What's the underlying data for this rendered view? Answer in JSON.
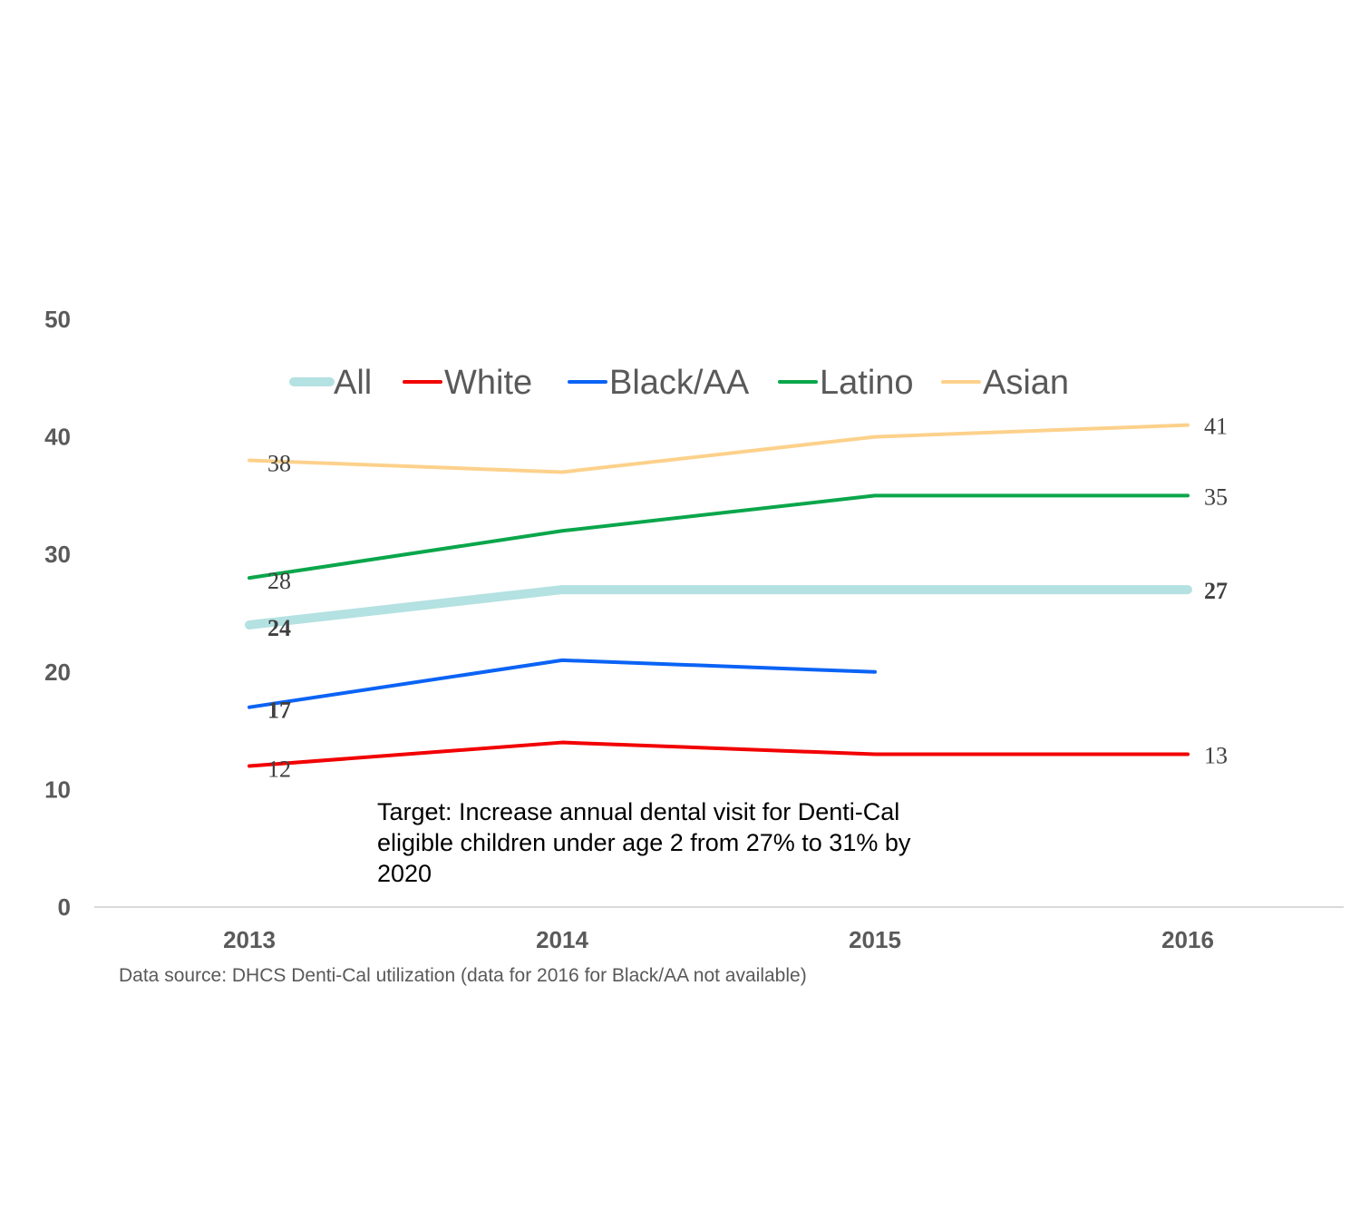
{
  "chart_data": {
    "type": "line",
    "x": [
      "2013",
      "2014",
      "2015",
      "2016"
    ],
    "ylim": [
      0,
      50
    ],
    "yticks": [
      0,
      10,
      20,
      30,
      40,
      50
    ],
    "grid": false,
    "legend_position": "top",
    "series": [
      {
        "name": "All",
        "color": "#b4e1e1",
        "values": [
          24,
          27,
          27,
          27
        ],
        "labels": {
          "0": "24",
          "3": "27"
        },
        "label_bold": true,
        "thick": true
      },
      {
        "name": "White",
        "color": "#f20000",
        "values": [
          12,
          14,
          13,
          13
        ],
        "labels": {
          "0": "12",
          "3": "13"
        },
        "label_bold": false,
        "thick": false
      },
      {
        "name": "Black/AA",
        "color": "#0b63f5",
        "values": [
          17,
          21,
          20,
          null
        ],
        "labels": {
          "0": "17"
        },
        "label_bold": true,
        "thick": false
      },
      {
        "name": "Latino",
        "color": "#0aa64b",
        "values": [
          28,
          32,
          35,
          35
        ],
        "labels": {
          "0": "28",
          "3": "35"
        },
        "label_bold": false,
        "thick": false
      },
      {
        "name": "Asian",
        "color": "#fdd18b",
        "values": [
          38,
          37,
          40,
          41
        ],
        "labels": {
          "0": "38",
          "3": "41"
        },
        "label_bold": false,
        "thick": false
      }
    ],
    "annotation": [
      "Target: Increase annual dental visit for Denti-Cal",
      "eligible children under age 2 from 27% to 31% by",
      "2020"
    ],
    "source": "Data source: DHCS Denti-Cal utilization (data for 2016 for Black/AA not available)"
  }
}
